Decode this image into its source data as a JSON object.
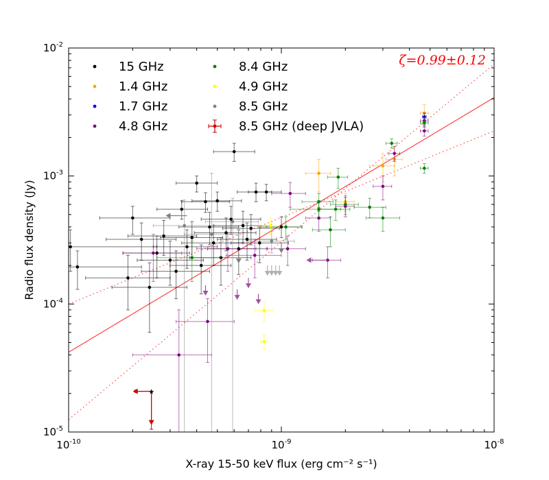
{
  "chart_data": {
    "type": "scatter",
    "xscale": "log",
    "yscale": "log",
    "xlim": [
      1e-10,
      1e-08
    ],
    "ylim": [
      1e-05,
      0.01
    ],
    "xlabel": "X-ray 15-50 keV flux (erg cm⁻² s⁻¹)",
    "ylabel": "Radio flux density (Jy)",
    "x_ticks": [
      {
        "base": "10",
        "exp": "-10"
      },
      {
        "base": "10",
        "exp": "-9"
      },
      {
        "base": "10",
        "exp": "-8"
      }
    ],
    "y_ticks": [
      {
        "base": "10",
        "exp": "-5"
      },
      {
        "base": "10",
        "exp": "-4"
      },
      {
        "base": "10",
        "exp": "-3"
      },
      {
        "base": "10",
        "exp": "-2"
      }
    ],
    "annotation": "ζ=0.99±0.12",
    "colors": {
      "fit": "#ff0000",
      "frame": "#000000"
    },
    "legend": [
      {
        "label": "15 GHz",
        "color": "#000000"
      },
      {
        "label": "1.4 GHz",
        "color": "#ffa500"
      },
      {
        "label": "1.7 GHz",
        "color": "#0000ff"
      },
      {
        "label": "4.8 GHz",
        "color": "#800080"
      },
      {
        "label": "8.4 GHz",
        "color": "#008000"
      },
      {
        "label": "4.9 GHz",
        "color": "#ffff00"
      },
      {
        "label": "8.5 GHz",
        "color": "#808080"
      },
      {
        "label": "8.5 GHz (deep JVLA)",
        "color": "#cc0000"
      }
    ],
    "fit_lines": [
      {
        "name": "best-fit",
        "style": "solid",
        "points": [
          [
            1e-10,
            4.2e-05
          ],
          [
            1e-08,
            0.0041
          ]
        ]
      },
      {
        "name": "upper-bound",
        "style": "dotted",
        "points": [
          [
            1e-10,
            1.25e-05
          ],
          [
            1e-08,
            0.0075
          ]
        ]
      },
      {
        "name": "lower-bound",
        "style": "dotted",
        "points": [
          [
            1e-10,
            0.0001
          ],
          [
            1e-08,
            0.00225
          ]
        ]
      }
    ],
    "series": [
      {
        "name": "15 GHz",
        "color": "#000000",
        "points": [
          {
            "x": 1.02e-10,
            "y": 0.00028,
            "xlo": 1e-10,
            "xhi": 2.6e-10,
            "ylo": 0.00018,
            "yhi": 0.00038
          },
          {
            "x": 1.1e-10,
            "y": 0.000195,
            "xlo": 1e-10,
            "xhi": 2.2e-10,
            "ylo": 0.00013,
            "yhi": 0.00026
          },
          {
            "x": 1.9e-10,
            "y": 0.00016,
            "xlo": 1.2e-10,
            "xhi": 3e-10,
            "ylo": 9e-05,
            "yhi": 0.00024
          },
          {
            "x": 2e-10,
            "y": 0.00047,
            "xlo": 1.4e-10,
            "xhi": 3e-10,
            "ylo": 0.00035,
            "yhi": 0.00058
          },
          {
            "x": 2.2e-10,
            "y": 0.00032,
            "xlo": 1.5e-10,
            "xhi": 3.2e-10,
            "ylo": 0.00022,
            "yhi": 0.00043
          },
          {
            "x": 2.4e-10,
            "y": 0.000135,
            "xlo": 1.6e-10,
            "xhi": 3.6e-10,
            "ylo": 6e-05,
            "yhi": 0.00021
          },
          {
            "x": 2.6e-10,
            "y": 0.00025,
            "xlo": 1.8e-10,
            "xhi": 3.7e-10,
            "ylo": 0.00016,
            "yhi": 0.00034
          },
          {
            "x": 2.8e-10,
            "y": 0.00034,
            "xlo": 1.9e-10,
            "xhi": 4e-10,
            "ylo": 0.00024,
            "yhi": 0.00045
          },
          {
            "x": 3e-10,
            "y": 0.00022,
            "xlo": 2.1e-10,
            "xhi": 4.3e-10,
            "ylo": 0.00014,
            "yhi": 0.00031
          },
          {
            "x": 3.2e-10,
            "y": 0.00018,
            "xlo": 2.2e-10,
            "xhi": 4.6e-10,
            "ylo": 0.00011,
            "yhi": 0.00026
          },
          {
            "x": 3.4e-10,
            "y": 0.00055,
            "xlo": 2.6e-10,
            "xhi": 4.5e-10,
            "ylo": 0.00046,
            "yhi": 0.00064
          },
          {
            "x": 3.6e-10,
            "y": 0.00028,
            "xlo": 2.5e-10,
            "xhi": 5e-10,
            "ylo": 0.00019,
            "yhi": 0.00038
          },
          {
            "x": 3.8e-10,
            "y": 0.00033,
            "xlo": 2.7e-10,
            "xhi": 5.3e-10,
            "ylo": 0.00023,
            "yhi": 0.00044
          },
          {
            "x": 4e-10,
            "y": 0.00088,
            "xlo": 3.2e-10,
            "xhi": 5e-10,
            "ylo": 0.00075,
            "yhi": 0.001
          },
          {
            "x": 4.2e-10,
            "y": 0.0002,
            "xlo": 3e-10,
            "xhi": 5.8e-10,
            "ylo": 0.00012,
            "yhi": 0.00029
          },
          {
            "x": 4.4e-10,
            "y": 0.00063,
            "xlo": 3.4e-10,
            "xhi": 5.7e-10,
            "ylo": 0.00052,
            "yhi": 0.00074
          },
          {
            "x": 4.6e-10,
            "y": 0.0004,
            "xlo": 3.3e-10,
            "xhi": 6.3e-10,
            "ylo": 0.00029,
            "yhi": 0.00052
          },
          {
            "x": 4.8e-10,
            "y": 0.0003,
            "xlo": 3.4e-10,
            "xhi": 6.6e-10,
            "ylo": 0.0002,
            "yhi": 0.00041
          },
          {
            "x": 5e-10,
            "y": 0.00064,
            "xlo": 3.8e-10,
            "xhi": 6.5e-10,
            "ylo": 0.00053,
            "yhi": 0.00075
          },
          {
            "x": 5.2e-10,
            "y": 0.00023,
            "xlo": 3.7e-10,
            "xhi": 7.2e-10,
            "ylo": 0.00014,
            "yhi": 0.00033
          },
          {
            "x": 5.5e-10,
            "y": 0.00036,
            "xlo": 3.9e-10,
            "xhi": 7.6e-10,
            "ylo": 0.00026,
            "yhi": 0.00047
          },
          {
            "x": 5.8e-10,
            "y": 0.00046,
            "xlo": 4.2e-10,
            "xhi": 8e-10,
            "ylo": 0.00035,
            "yhi": 0.00058
          },
          {
            "x": 6e-10,
            "y": 0.00155,
            "xlo": 4.8e-10,
            "xhi": 7.5e-10,
            "ylo": 0.0013,
            "yhi": 0.0018
          },
          {
            "x": 6.3e-10,
            "y": 0.00027,
            "xlo": 4.5e-10,
            "xhi": 8.6e-10,
            "ylo": 0.00017,
            "yhi": 0.00038
          },
          {
            "x": 6.6e-10,
            "y": 0.00041,
            "xlo": 4.8e-10,
            "xhi": 9e-10,
            "ylo": 0.0003,
            "yhi": 0.00053
          },
          {
            "x": 6.9e-10,
            "y": 0.00032,
            "xlo": 5e-10,
            "xhi": 9.5e-10,
            "ylo": 0.00022,
            "yhi": 0.00043
          },
          {
            "x": 7.2e-10,
            "y": 0.00039,
            "xlo": 5.3e-10,
            "xhi": 9.8e-10,
            "ylo": 0.00029,
            "yhi": 0.0005
          },
          {
            "x": 7.6e-10,
            "y": 0.00075,
            "xlo": 6.2e-10,
            "xhi": 9e-10,
            "ylo": 0.00063,
            "yhi": 0.00088
          },
          {
            "x": 7.9e-10,
            "y": 0.0003,
            "xlo": 5.8e-10,
            "xhi": 1.08e-09,
            "ylo": 0.00021,
            "yhi": 0.0004
          },
          {
            "x": 8.5e-10,
            "y": 0.00075,
            "xlo": 7e-10,
            "xhi": 1e-09,
            "ylo": 0.00064,
            "yhi": 0.00086
          },
          {
            "x": 1e-09,
            "y": 0.0004,
            "xlo": 8e-10,
            "xhi": 1.25e-09,
            "ylo": 0.00033,
            "yhi": 0.00048
          }
        ]
      },
      {
        "name": "1.4 GHz",
        "color": "#ffa500",
        "points": [
          {
            "x": 1.5e-09,
            "y": 0.00105,
            "xlo": 1.3e-09,
            "xhi": 1.7e-09,
            "ylo": 0.00075,
            "yhi": 0.00135
          },
          {
            "x": 3e-09,
            "y": 0.0012,
            "xlo": 2.6e-09,
            "xhi": 3.4e-09,
            "ylo": 0.0009,
            "yhi": 0.0015
          },
          {
            "x": 3.4e-09,
            "y": 0.00135,
            "xlo": 3.1e-09,
            "xhi": 3.7e-09,
            "ylo": 0.001,
            "yhi": 0.0017
          },
          {
            "x": 4.7e-09,
            "y": 0.0031,
            "xlo": 4.5e-09,
            "xhi": 4.9e-09,
            "ylo": 0.0026,
            "yhi": 0.0036
          },
          {
            "x": 2e-09,
            "y": 0.00063,
            "xlo": 1.8e-09,
            "xhi": 2.2e-09,
            "ylo": 0.00053,
            "yhi": 0.00073
          }
        ]
      },
      {
        "name": "1.7 GHz",
        "color": "#0000ff",
        "points": [
          {
            "x": 4.7e-09,
            "y": 0.0029,
            "xlo": 4.6e-09,
            "xhi": 4.8e-09,
            "ylo": 0.0027,
            "yhi": 0.0031
          }
        ]
      },
      {
        "name": "4.8 GHz",
        "color": "#800080",
        "points": [
          {
            "x": 1.1e-09,
            "y": 0.00073,
            "xlo": 9e-10,
            "xhi": 1.3e-09,
            "ylo": 0.00057,
            "yhi": 0.00089
          },
          {
            "x": 1.5e-09,
            "y": 0.00047,
            "xlo": 1.3e-09,
            "xhi": 1.7e-09,
            "ylo": 0.00037,
            "yhi": 0.00057
          },
          {
            "x": 1.65e-09,
            "y": 0.00022,
            "xlo": 1.4e-09,
            "xhi": 1.9e-09,
            "ylo": 0.00016,
            "yhi": 0.00028
          },
          {
            "x": 2e-09,
            "y": 0.00058,
            "xlo": 1.8e-09,
            "xhi": 2.2e-09,
            "ylo": 0.00048,
            "yhi": 0.00068
          },
          {
            "x": 3e-09,
            "y": 0.00083,
            "xlo": 2.7e-09,
            "xhi": 3.3e-09,
            "ylo": 0.00065,
            "yhi": 0.001
          },
          {
            "x": 3.4e-09,
            "y": 0.0015,
            "xlo": 3.2e-09,
            "xhi": 3.6e-09,
            "ylo": 0.0013,
            "yhi": 0.0017
          },
          {
            "x": 4.7e-09,
            "y": 0.00225,
            "xlo": 4.5e-09,
            "xhi": 4.9e-09,
            "ylo": 0.00205,
            "yhi": 0.00245
          },
          {
            "x": 4.7e-09,
            "y": 0.0027,
            "xlo": 4.5e-09,
            "xhi": 4.9e-09,
            "ylo": 0.0025,
            "yhi": 0.0029
          },
          {
            "x": 2.5e-10,
            "y": 0.00025,
            "xlo": 1.8e-10,
            "xhi": 3.4e-10,
            "ylo": 0.00015,
            "yhi": 0.00035
          },
          {
            "x": 3.3e-10,
            "y": 4e-05,
            "xlo": 2e-10,
            "xhi": 4.7e-10,
            "ylo": 1e-05,
            "yhi": 9e-05
          },
          {
            "x": 4.5e-10,
            "y": 7.3e-05,
            "xlo": 3.2e-10,
            "xhi": 6e-10,
            "ylo": 3.5e-05,
            "yhi": 0.00011
          },
          {
            "x": 5.6e-10,
            "y": 0.00027,
            "xlo": 4e-10,
            "xhi": 7.6e-10,
            "ylo": 0.00018,
            "yhi": 0.00036
          },
          {
            "x": 7.5e-10,
            "y": 0.00024,
            "xlo": 5.5e-10,
            "xhi": 1e-09,
            "ylo": 0.00016,
            "yhi": 0.00032
          },
          {
            "x": 1.07e-09,
            "y": 0.00027,
            "xlo": 8.5e-10,
            "xhi": 1.3e-09,
            "ylo": 0.0002,
            "yhi": 0.00034
          }
        ]
      },
      {
        "name": "8.4 GHz",
        "color": "#008000",
        "points": [
          {
            "x": 1.05e-09,
            "y": 0.0004,
            "xlo": 8.5e-10,
            "xhi": 1.25e-09,
            "ylo": 0.00032,
            "yhi": 0.00048
          },
          {
            "x": 1.5e-09,
            "y": 0.00063,
            "xlo": 1.25e-09,
            "xhi": 1.75e-09,
            "ylo": 0.00053,
            "yhi": 0.00073
          },
          {
            "x": 1.5e-09,
            "y": 0.00055,
            "xlo": 1.1e-09,
            "xhi": 1.9e-09,
            "ylo": 0.00046,
            "yhi": 0.00064
          },
          {
            "x": 1.7e-09,
            "y": 0.00038,
            "xlo": 1.4e-09,
            "xhi": 2e-09,
            "ylo": 0.00028,
            "yhi": 0.00048
          },
          {
            "x": 1.85e-09,
            "y": 0.00098,
            "xlo": 1.65e-09,
            "xhi": 2.05e-09,
            "ylo": 0.0008,
            "yhi": 0.00115
          },
          {
            "x": 1.8e-09,
            "y": 0.00055,
            "xlo": 1.5e-09,
            "xhi": 2.1e-09,
            "ylo": 0.00045,
            "yhi": 0.00065
          },
          {
            "x": 2e-09,
            "y": 0.0006,
            "xlo": 1.7e-09,
            "xhi": 2.3e-09,
            "ylo": 0.0005,
            "yhi": 0.0007
          },
          {
            "x": 2.6e-09,
            "y": 0.00057,
            "xlo": 2.2e-09,
            "xhi": 3.1e-09,
            "ylo": 0.00047,
            "yhi": 0.00067
          },
          {
            "x": 3e-09,
            "y": 0.00047,
            "xlo": 2.5e-09,
            "xhi": 3.6e-09,
            "ylo": 0.00037,
            "yhi": 0.00057
          },
          {
            "x": 3.3e-09,
            "y": 0.0018,
            "xlo": 3.1e-09,
            "xhi": 3.5e-09,
            "ylo": 0.00165,
            "yhi": 0.00195
          },
          {
            "x": 4.7e-09,
            "y": 0.00115,
            "xlo": 4.5e-09,
            "xhi": 4.9e-09,
            "ylo": 0.00105,
            "yhi": 0.00125
          },
          {
            "x": 4.7e-09,
            "y": 0.0026,
            "xlo": 4.5e-09,
            "xhi": 4.9e-09,
            "ylo": 0.0024,
            "yhi": 0.0028
          },
          {
            "x": 3.8e-10,
            "y": 0.00023,
            "xlo": 2.6e-10,
            "xhi": 5.2e-10,
            "ylo": 0.00015,
            "yhi": 0.00031
          }
        ]
      },
      {
        "name": "4.9 GHz",
        "color": "#ffff00",
        "points": [
          {
            "x": 8.3e-10,
            "y": 8.9e-05,
            "xlo": 7.5e-10,
            "xhi": 9.2e-10,
            "ylo": 7.3e-05,
            "yhi": 0.000105
          },
          {
            "x": 8.3e-10,
            "y": 5.1e-05,
            "xlo": 8e-10,
            "xhi": 8.6e-10,
            "ylo": 4.5e-05,
            "yhi": 5.7e-05
          },
          {
            "x": 8.9e-10,
            "y": 0.00041,
            "xlo": 8e-10,
            "xhi": 9.8e-10,
            "ylo": 0.00035,
            "yhi": 0.00047
          }
        ]
      },
      {
        "name": "8.5 GHz",
        "color": "#808080",
        "points": [
          {
            "x": 3.5e-10,
            "y": 0.00041,
            "xlo": 2.5e-10,
            "xhi": 4.8e-10,
            "ylo": 1e-05,
            "yhi": 0.00065
          },
          {
            "x": 4.7e-10,
            "y": 0.00035,
            "xlo": 3.5e-10,
            "xhi": 6.3e-10,
            "ylo": 1e-05,
            "yhi": 0.00105
          },
          {
            "x": 5.9e-10,
            "y": 0.00044,
            "xlo": 4.4e-10,
            "xhi": 7.8e-10,
            "ylo": 1e-05,
            "yhi": 0.00067
          },
          {
            "x": 9e-10,
            "y": 0.00031,
            "xlo": 7e-10,
            "xhi": 1.15e-09,
            "ylo": 0.00025,
            "yhi": 0.00037
          }
        ]
      },
      {
        "name": "8.5 GHz (deep JVLA)",
        "color": "#cc0000",
        "points": [
          {
            "x": 2.45e-10,
            "y": 2.08e-05,
            "xlo": 2.05e-10,
            "xhi": 2.45e-10,
            "ylo": 1.05e-05,
            "yhi": 2.08e-05
          }
        ]
      }
    ],
    "upper_limits": [
      {
        "x": 6.3e-10,
        "y": 0.00025,
        "color": "#808080"
      },
      {
        "x": 8.6e-10,
        "y": 0.0002,
        "color": "#b0b0b0"
      },
      {
        "x": 9e-10,
        "y": 0.0002,
        "color": "#b0b0b0"
      },
      {
        "x": 9.4e-10,
        "y": 0.0002,
        "color": "#b0b0b0"
      },
      {
        "x": 9.8e-10,
        "y": 0.0002,
        "color": "#b0b0b0"
      },
      {
        "x": 7e-10,
        "y": 0.00016,
        "color": "#a050a0"
      },
      {
        "x": 7.8e-10,
        "y": 0.00012,
        "color": "#a050a0"
      },
      {
        "x": 6.2e-10,
        "y": 0.00013,
        "color": "#a050a0"
      },
      {
        "x": 4.4e-10,
        "y": 0.00014,
        "color": "#a050a0"
      },
      {
        "x": 1e-09,
        "y": 0.0003,
        "color": "#808080"
      }
    ],
    "left_limits": [
      {
        "x": 1.65e-09,
        "y": 0.00022,
        "color": "#a050a0"
      },
      {
        "x": 3.6e-10,
        "y": 0.00049,
        "color": "#808080"
      }
    ]
  }
}
